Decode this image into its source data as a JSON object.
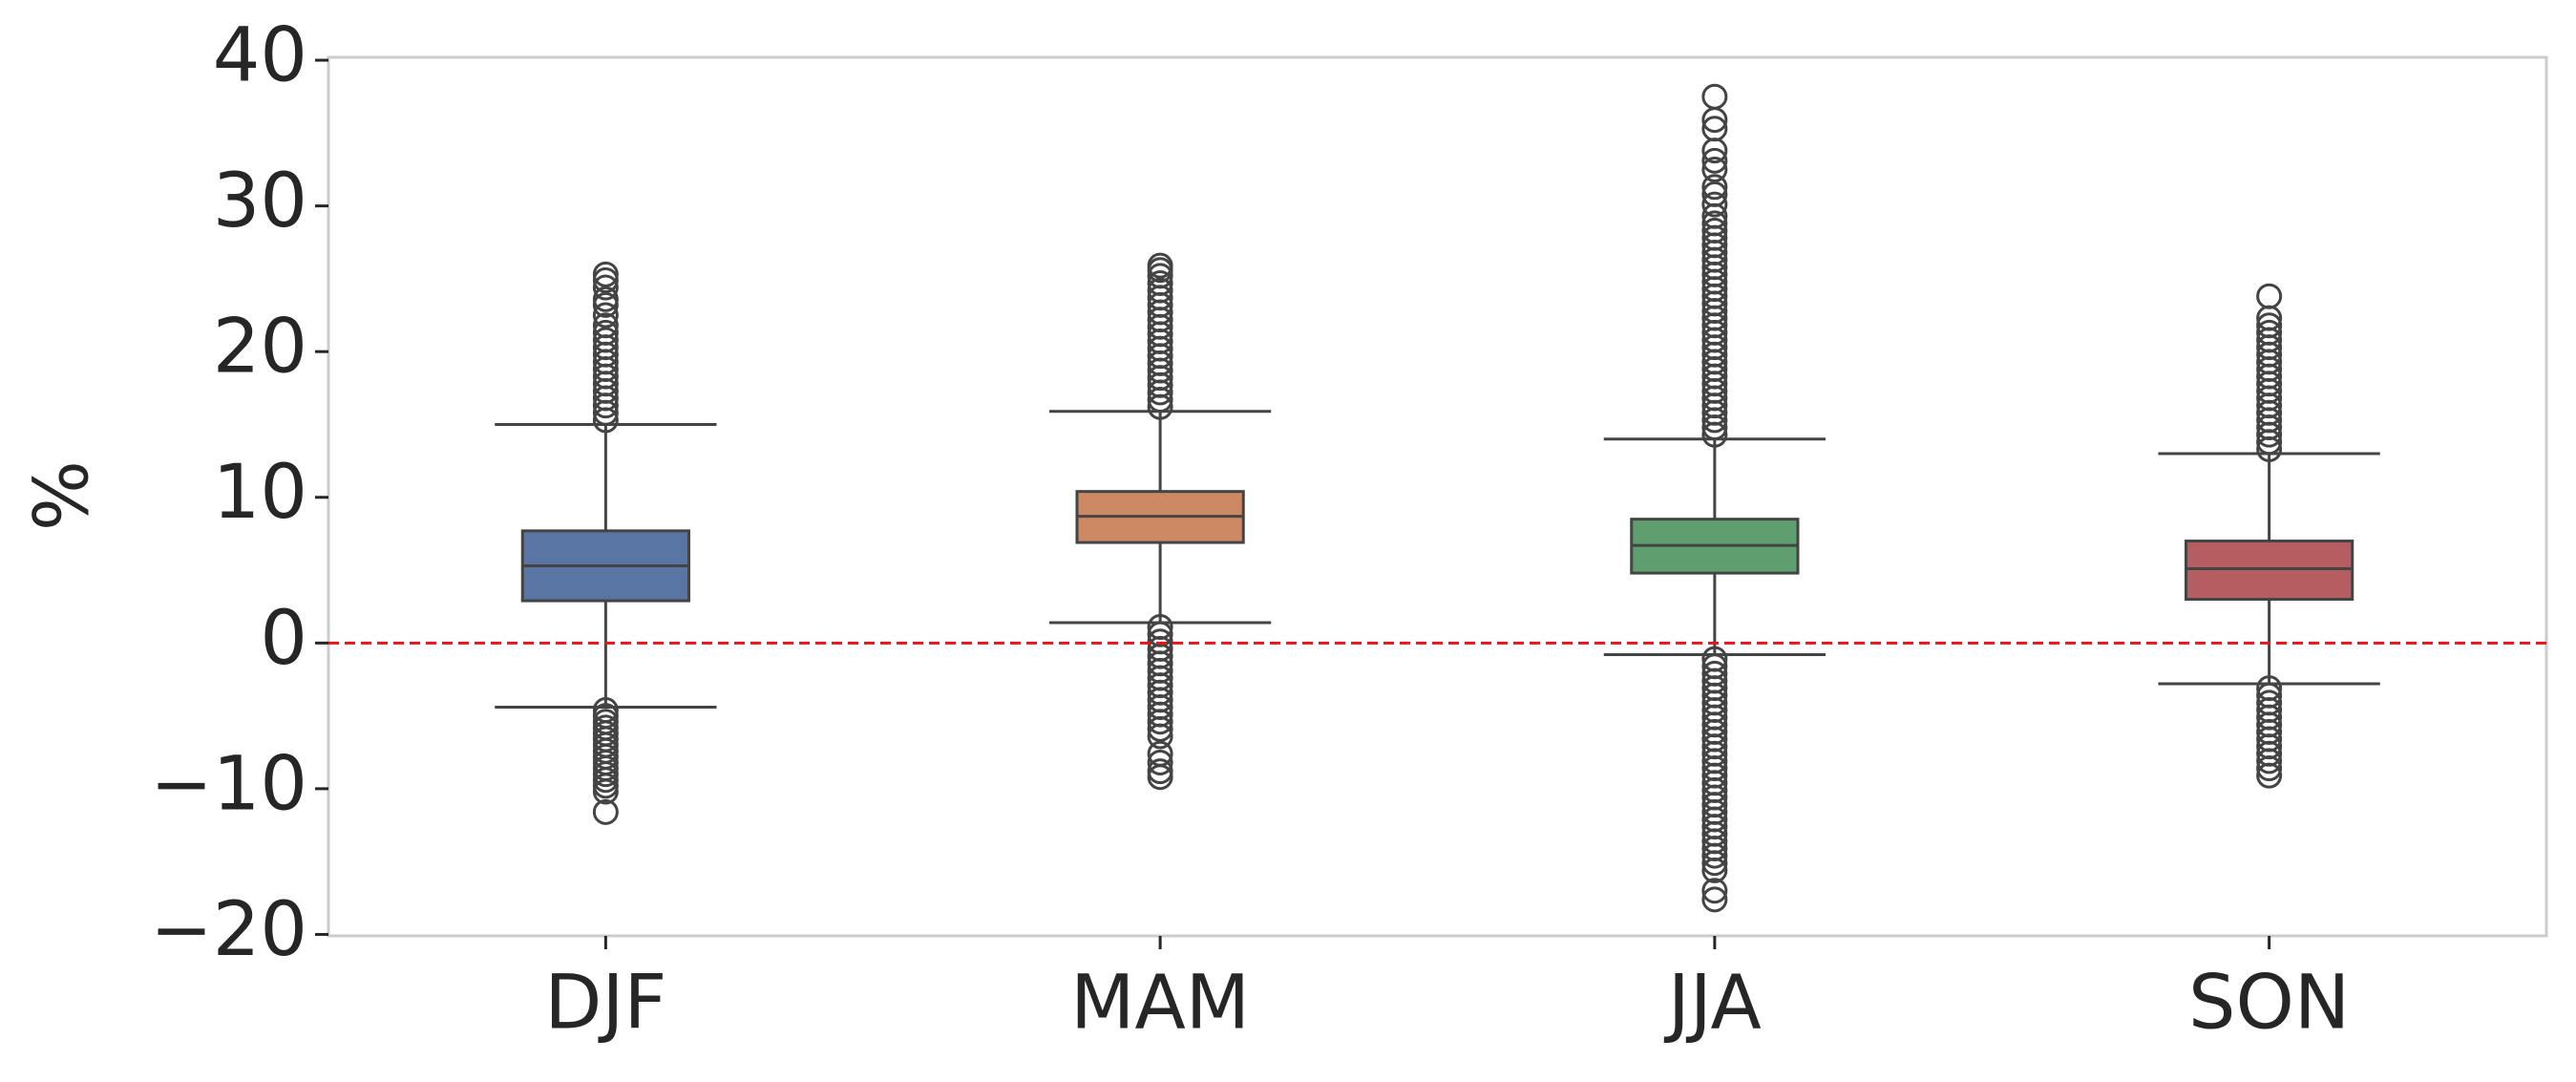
{
  "chart_data": {
    "type": "box",
    "y_label": "%",
    "categories": [
      "DJF",
      "MAM",
      "JJA",
      "SON"
    ],
    "colors": [
      "#5875a4",
      "#cc8963",
      "#5f9e6e",
      "#b55d60"
    ],
    "boxes": [
      {
        "whislo": -4.4,
        "q1": 2.9,
        "med": 5.3,
        "q3": 7.7,
        "whishi": 15.0,
        "fliers": [
          15.3,
          15.8,
          16.3,
          16.8,
          17.3,
          17.8,
          18.3,
          18.8,
          19.3,
          19.8,
          20.3,
          20.8,
          21.3,
          21.8,
          22.5,
          23.2,
          23.6,
          24.4,
          24.9,
          25.3,
          -4.6,
          -5.0,
          -5.4,
          -5.8,
          -6.2,
          -6.6,
          -7.0,
          -7.4,
          -7.8,
          -8.2,
          -8.6,
          -9.0,
          -9.4,
          -9.8,
          -10.2,
          -11.6
        ]
      },
      {
        "whislo": 1.4,
        "q1": 6.9,
        "med": 8.7,
        "q3": 10.4,
        "whishi": 15.9,
        "fliers": [
          16.2,
          16.7,
          17.2,
          17.7,
          18.2,
          18.7,
          19.2,
          19.7,
          20.2,
          20.7,
          21.2,
          21.7,
          22.2,
          22.7,
          23.2,
          23.7,
          24.2,
          24.7,
          25.2,
          25.6,
          25.9,
          1.1,
          0.6,
          0.1,
          -0.4,
          -0.9,
          -1.4,
          -1.9,
          -2.4,
          -2.9,
          -3.4,
          -3.9,
          -4.4,
          -4.9,
          -5.4,
          -5.9,
          -6.4,
          -7.6,
          -8.2,
          -8.8,
          -9.2
        ]
      },
      {
        "whislo": -0.8,
        "q1": 4.8,
        "med": 6.7,
        "q3": 8.5,
        "whishi": 14.0,
        "fliers": [
          14.3,
          14.8,
          15.3,
          15.8,
          16.3,
          16.8,
          17.3,
          17.8,
          18.3,
          18.8,
          19.3,
          19.8,
          20.3,
          20.8,
          21.3,
          21.8,
          22.3,
          22.8,
          23.3,
          23.8,
          24.3,
          24.8,
          25.3,
          25.8,
          26.3,
          26.8,
          27.3,
          27.8,
          28.3,
          28.8,
          29.3,
          30.1,
          30.8,
          31.3,
          32.5,
          33.1,
          33.8,
          35.3,
          35.9,
          37.5,
          -1.1,
          -1.6,
          -2.1,
          -2.6,
          -3.1,
          -3.6,
          -4.1,
          -4.6,
          -5.1,
          -5.6,
          -6.1,
          -6.6,
          -7.1,
          -7.6,
          -8.1,
          -8.6,
          -9.1,
          -9.6,
          -10.1,
          -10.6,
          -11.1,
          -11.6,
          -12.1,
          -12.6,
          -13.1,
          -13.6,
          -14.1,
          -14.6,
          -15.1,
          -15.6,
          -17.0,
          -17.6
        ]
      },
      {
        "whislo": -2.8,
        "q1": 3.0,
        "med": 5.1,
        "q3": 7.0,
        "whishi": 13.0,
        "fliers": [
          13.3,
          13.8,
          14.3,
          14.8,
          15.3,
          15.8,
          16.3,
          16.8,
          17.3,
          17.8,
          18.3,
          18.8,
          19.3,
          19.8,
          20.3,
          20.8,
          21.3,
          21.8,
          22.3,
          23.8,
          -3.1,
          -3.6,
          -4.1,
          -4.6,
          -5.1,
          -5.6,
          -6.1,
          -6.6,
          -7.1,
          -7.6,
          -8.1,
          -8.6,
          -9.1
        ]
      }
    ],
    "hline": {
      "value": 0,
      "color": "#e8141c"
    },
    "ylim": [
      -20.1,
      40.2
    ],
    "yticks": [
      {
        "value": -20,
        "label": "−20"
      },
      {
        "value": -10,
        "label": "−10"
      },
      0,
      10,
      20,
      30,
      40
    ]
  }
}
